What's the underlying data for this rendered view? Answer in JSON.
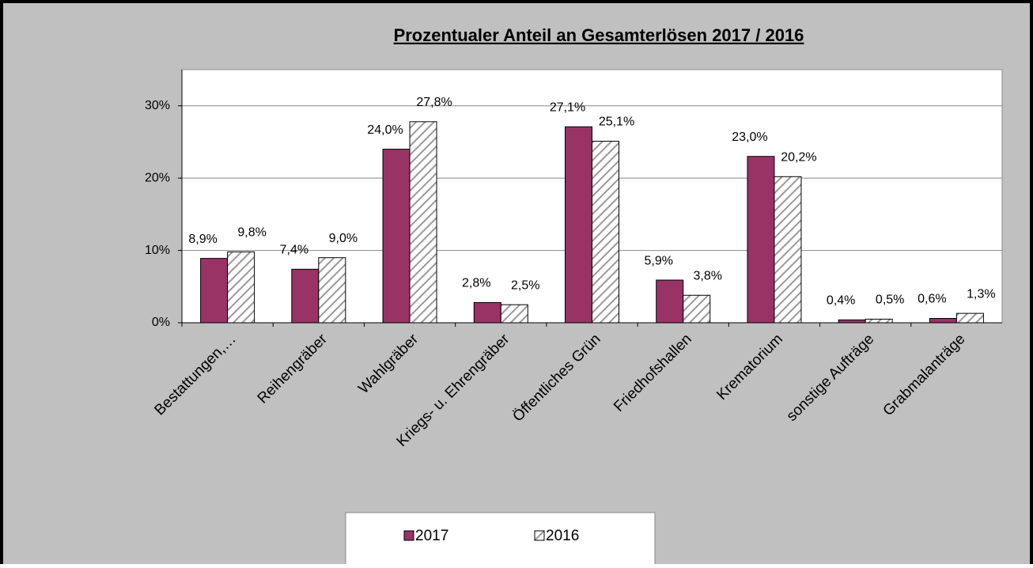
{
  "chart_data": {
    "type": "bar",
    "title": "Prozentualer Anteil an Gesamterlösen 2017 / 2016",
    "categories": [
      "Bestattungen,…",
      "Reihengräber",
      "Wahlgräber",
      "Kriegs- u. Ehrengräber",
      "Öffentliches Grün",
      "Friedhofshallen",
      "Krematorium",
      "sonstige Aufträge",
      "Grabmalanträge"
    ],
    "series": [
      {
        "name": "2017",
        "color": "#993366",
        "values": [
          8.9,
          7.4,
          24.0,
          2.8,
          27.1,
          5.9,
          23.0,
          0.4,
          0.6
        ],
        "value_labels": [
          "8,9%",
          "7,4%",
          "24,0%",
          "2,8%",
          "27,1%",
          "5,9%",
          "23,0%",
          "0,4%",
          "0,6%"
        ]
      },
      {
        "name": "2016",
        "color": "#ffffff",
        "pattern": "hatch",
        "values": [
          9.8,
          9.0,
          27.8,
          2.5,
          25.1,
          3.8,
          20.2,
          0.5,
          1.3
        ],
        "value_labels": [
          "9,8%",
          "9,0%",
          "27,8%",
          "2,5%",
          "25,1%",
          "3,8%",
          "20,2%",
          "0,5%",
          "1,3%"
        ]
      }
    ],
    "ylim": [
      0,
      35
    ],
    "yticks": [
      {
        "value": 0,
        "label": "0%"
      },
      {
        "value": 10,
        "label": "10%"
      },
      {
        "value": 20,
        "label": "20%"
      },
      {
        "value": 30,
        "label": "30%"
      }
    ],
    "grid": true
  }
}
